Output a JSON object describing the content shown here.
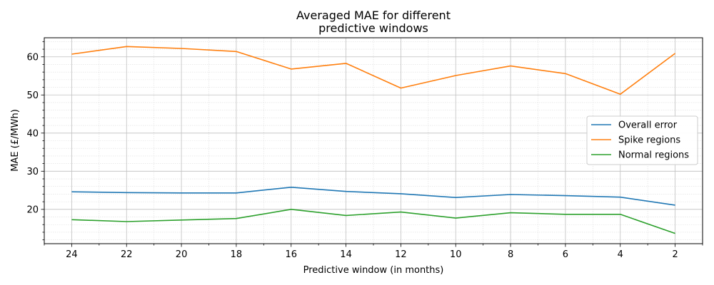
{
  "chart_data": {
    "type": "line",
    "title": "Averaged MAE for different",
    "subtitle": "predictive windows",
    "xlabel": "Predictive window (in months)",
    "ylabel": "MAE (£/MWh)",
    "x": [
      24,
      22,
      20,
      18,
      16,
      14,
      12,
      10,
      8,
      6,
      4,
      2
    ],
    "x_ticks": [
      "24",
      "22",
      "20",
      "18",
      "16",
      "14",
      "12",
      "10",
      "8",
      "6",
      "4",
      "2"
    ],
    "y_ticks": [
      "20",
      "30",
      "40",
      "50",
      "60"
    ],
    "x_inverted": true,
    "xlim": [
      25,
      1
    ],
    "ylim": [
      11,
      65
    ],
    "grid": true,
    "legend_position": "center-right",
    "series": [
      {
        "name": "Overall error",
        "color": "#1f77b4",
        "values": [
          24.6,
          24.4,
          24.3,
          24.3,
          25.8,
          24.7,
          24.1,
          23.1,
          23.9,
          23.6,
          23.2,
          21.1
        ]
      },
      {
        "name": "Spike regions",
        "color": "#ff7f0e",
        "values": [
          60.7,
          62.7,
          62.2,
          61.4,
          56.8,
          58.3,
          51.8,
          55.1,
          57.6,
          55.6,
          50.2,
          60.9
        ]
      },
      {
        "name": "Normal regions",
        "color": "#2ca02c",
        "values": [
          17.3,
          16.8,
          17.2,
          17.6,
          20.0,
          18.4,
          19.3,
          17.7,
          19.1,
          18.7,
          18.7,
          13.7
        ]
      }
    ]
  }
}
